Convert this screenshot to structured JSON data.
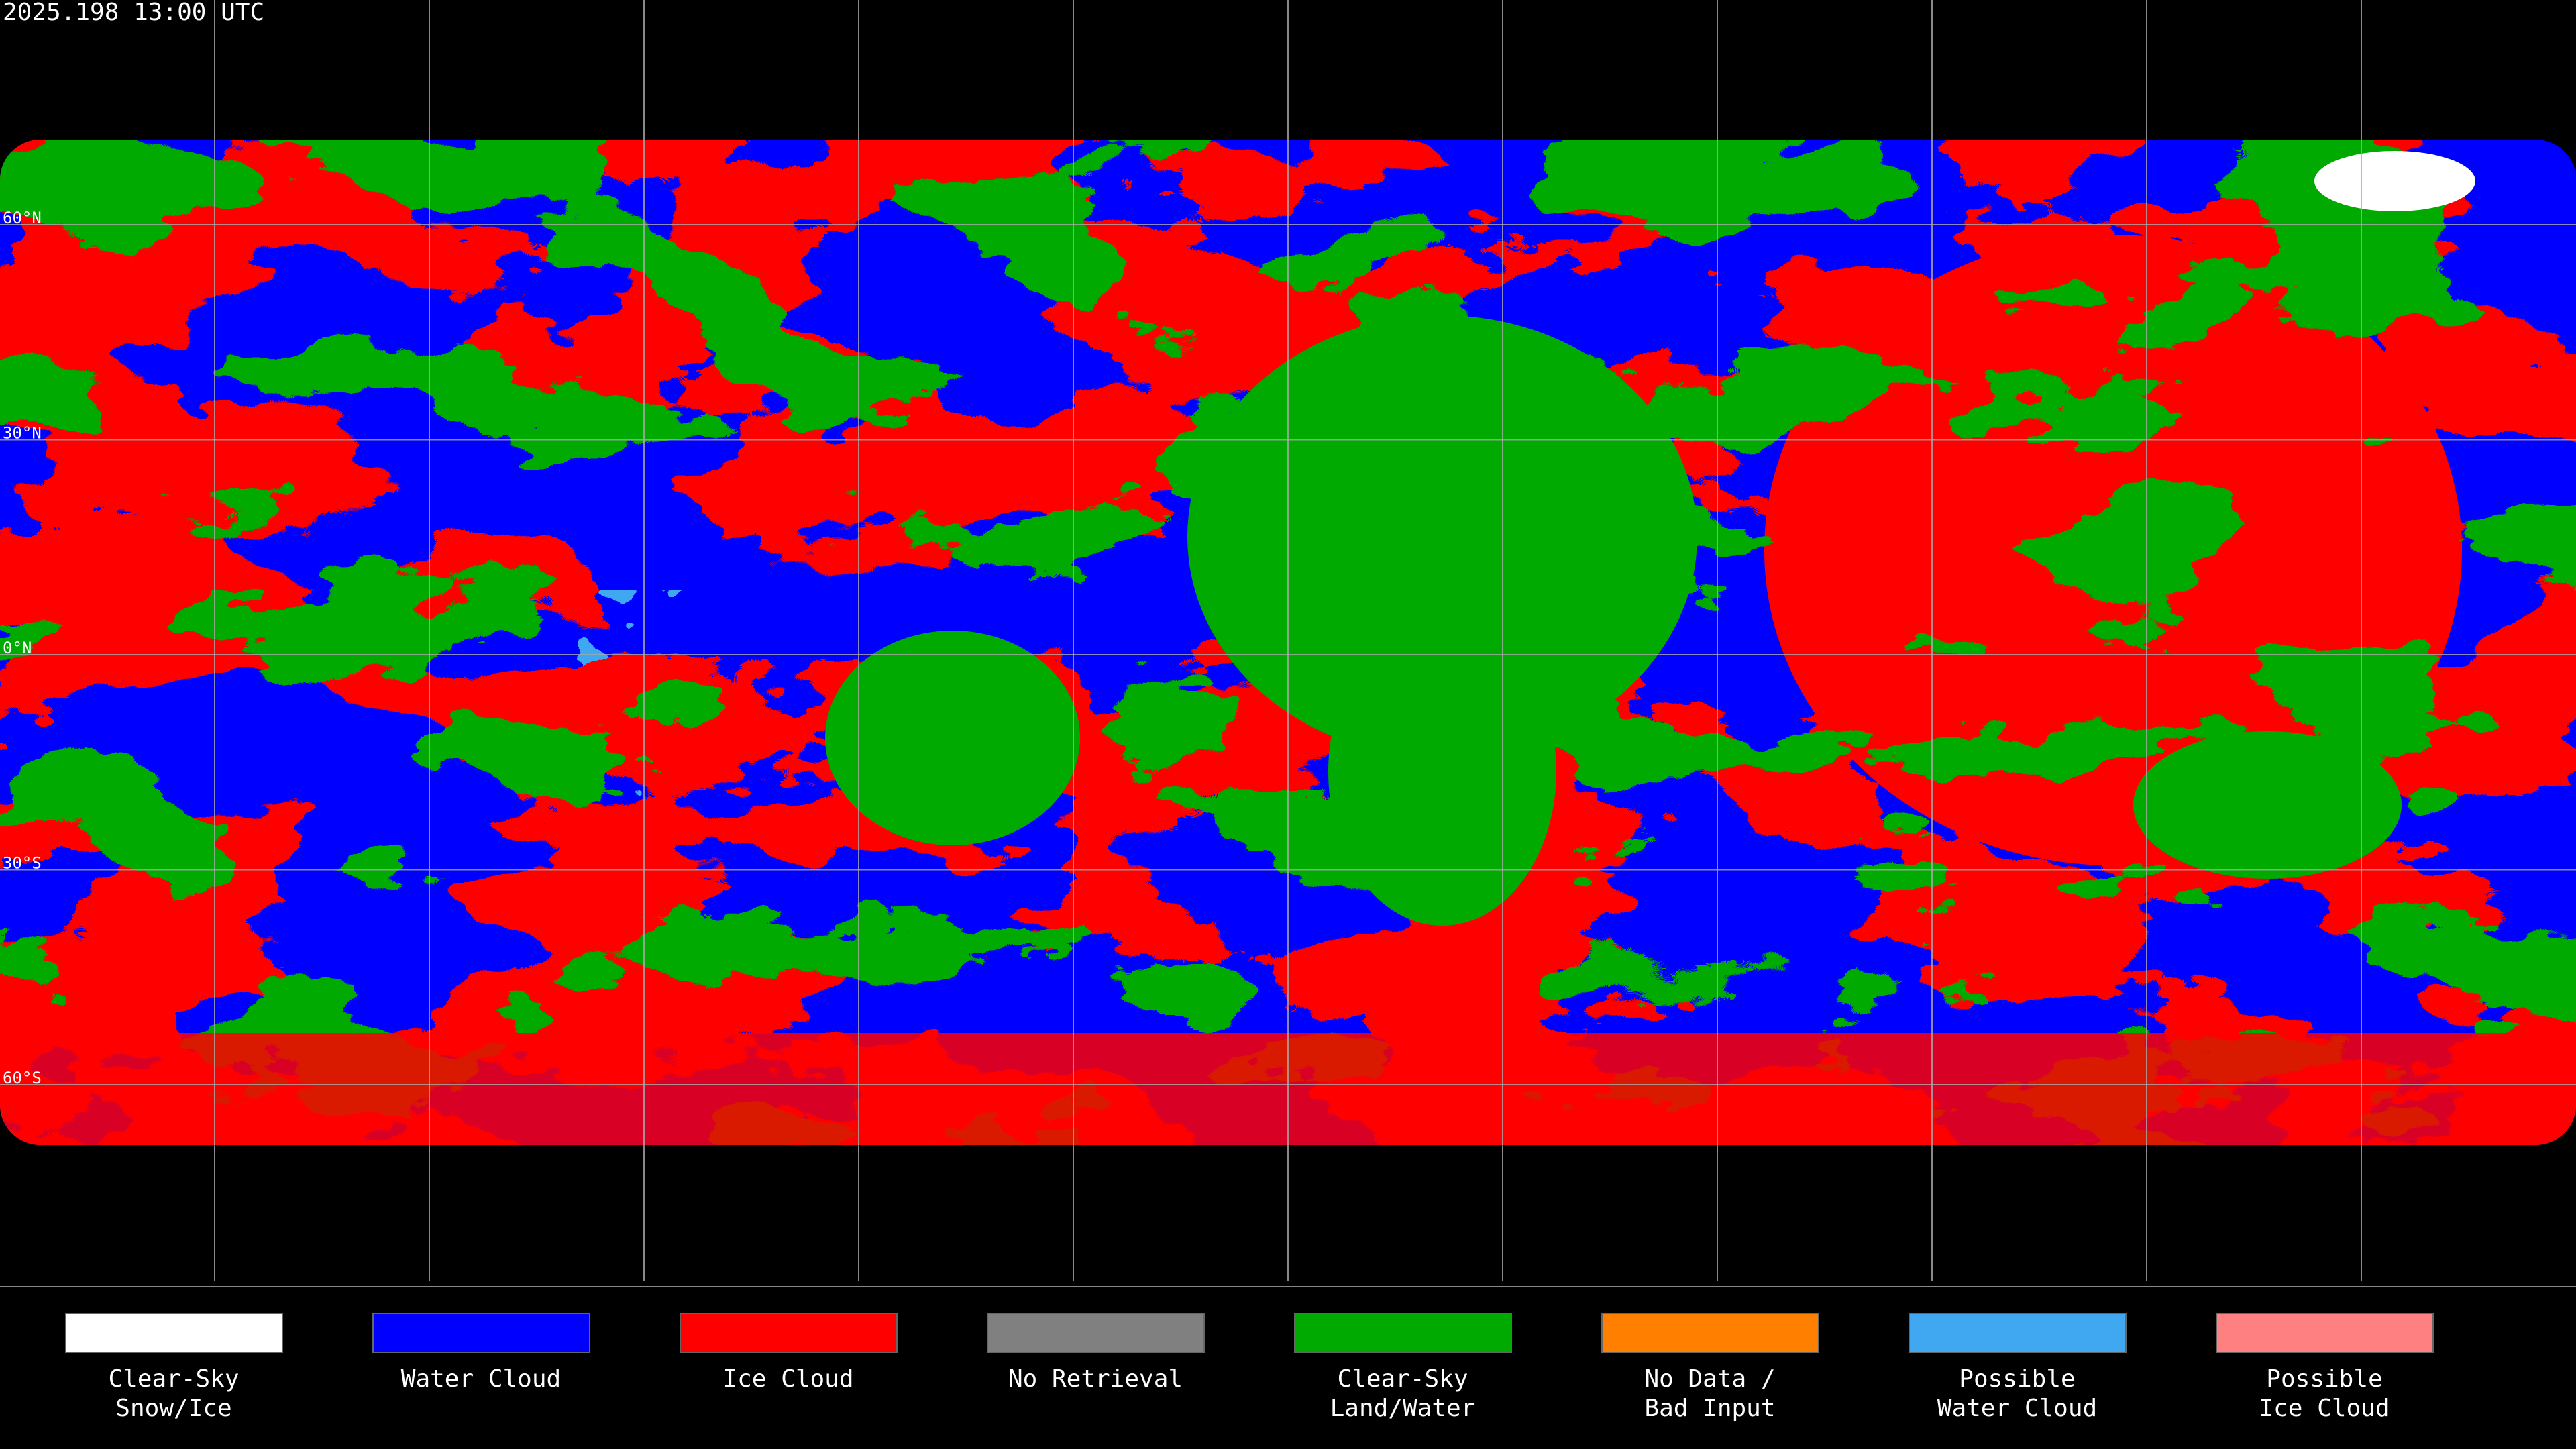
{
  "header": {
    "timestamp": "2025.198 13:00 UTC"
  },
  "map": {
    "latitude_labels": [
      "60°N",
      "30°N",
      "0°N",
      "30°S",
      "60°S"
    ]
  },
  "legend": {
    "items": [
      {
        "lines": [
          "Clear-Sky",
          "Snow/Ice"
        ],
        "color": "#ffffff"
      },
      {
        "lines": [
          "Water Cloud"
        ],
        "color": "#0000ff"
      },
      {
        "lines": [
          "Ice Cloud"
        ],
        "color": "#ff0000"
      },
      {
        "lines": [
          "No Retrieval"
        ],
        "color": "#808080"
      },
      {
        "lines": [
          "Clear-Sky",
          "Land/Water"
        ],
        "color": "#00aa00"
      },
      {
        "lines": [
          "No Data /",
          "Bad Input"
        ],
        "color": "#ff8000"
      },
      {
        "lines": [
          "Possible",
          "Water Cloud"
        ],
        "color": "#40a8f0"
      },
      {
        "lines": [
          "Possible",
          "Ice Cloud"
        ],
        "color": "#ff8080"
      }
    ]
  }
}
